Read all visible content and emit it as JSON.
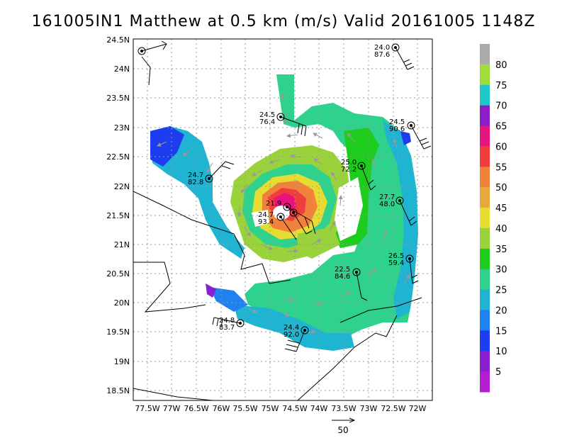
{
  "title": "161005IN1 Matthew at 0.5 km (m/s) Valid 20161005 1148Z",
  "map": {
    "lat_range": [
      18.4,
      24.5
    ],
    "lon_range": [
      -77.9,
      -71.8
    ],
    "lat_ticks": [
      "24.5N",
      "24N",
      "23.5N",
      "23N",
      "22.5N",
      "22N",
      "21.5N",
      "21N",
      "20.5N",
      "20N",
      "19.5N",
      "19N",
      "18.5N"
    ],
    "lon_ticks": [
      "77.5W",
      "77W",
      "76.5W",
      "76W",
      "75.5W",
      "75W",
      "74.5W",
      "74W",
      "73.5W",
      "73W",
      "72.5W",
      "72W"
    ],
    "grid": true,
    "storm_center": {
      "lat": 21.6,
      "lon": -74.7
    }
  },
  "colorbar": {
    "labels": [
      "80",
      "75",
      "70",
      "65",
      "60",
      "55",
      "50",
      "45",
      "40",
      "35",
      "30",
      "25",
      "20",
      "15",
      "10",
      "5"
    ],
    "colors": [
      "#aaaaaa",
      "#a0dc3c",
      "#1ec8c8",
      "#8c1ec8",
      "#e6147e",
      "#f03c3c",
      "#f0823c",
      "#e6aa3c",
      "#e6dc32",
      "#9ad23c",
      "#1ecc1e",
      "#2ed28c",
      "#1eb4d2",
      "#1e82f0",
      "#1e3cf0",
      "#8c1ed2",
      "#b41ed2"
    ]
  },
  "observations": [
    {
      "v": "24.0",
      "p": "87.6"
    },
    {
      "v": "24.5",
      "p": "76.4"
    },
    {
      "v": "24.5",
      "p": "90.6"
    },
    {
      "v": "25.0",
      "p": "72.2"
    },
    {
      "v": "24.7",
      "p": "82.8"
    },
    {
      "v": "27.7",
      "p": "48.0"
    },
    {
      "v": "21.9",
      "p": ""
    },
    {
      "v": "24.7",
      "p": "93.4"
    },
    {
      "v": "26.5",
      "p": "59.4"
    },
    {
      "v": "22.5",
      "p": "84.6"
    },
    {
      "v": "24.8",
      "p": "83.7"
    },
    {
      "v": "24.4",
      "p": "92.0"
    }
  ],
  "scale_arrow": {
    "label": "50"
  }
}
